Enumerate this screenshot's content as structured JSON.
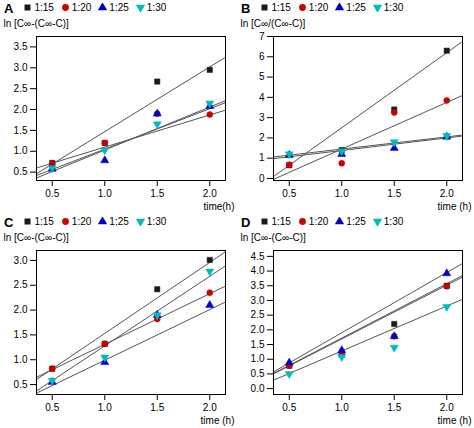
{
  "chart_data": [
    {
      "type": "scatter",
      "title": "A",
      "xlabel": "time(h)",
      "ylabel": "ln [C∞-(C∞-C)]",
      "xlim": [
        0.35,
        2.15
      ],
      "ylim": [
        0.3,
        3.75
      ],
      "xticks": [
        0.5,
        {
          "value": 1.0,
          "label": "1.0"
        },
        1.5,
        {
          "value": 2.0,
          "label": "2.0"
        }
      ],
      "yticks": [
        0.5,
        {
          "value": 1.0,
          "label": "1.0"
        },
        1.5,
        {
          "value": 2.0,
          "label": "2.0"
        },
        2.5,
        {
          "value": 3.0,
          "label": "3.0"
        },
        3.5
      ],
      "legend": "top",
      "series": [
        {
          "name": "1:15",
          "color": "#1a1a1a",
          "marker": "square",
          "x": [
            0.5,
            1.0,
            1.5,
            2.0
          ],
          "values": [
            0.72,
            1.2,
            2.67,
            2.95
          ],
          "fit": {
            "x": [
              0.35,
              2.15
            ],
            "values": [
              0.4625,
              3.2525
            ],
            "color": "#555555"
          }
        },
        {
          "name": "1:20",
          "color": "#cc0000",
          "marker": "circle",
          "x": [
            0.5,
            1.0,
            1.5,
            2.0
          ],
          "values": [
            0.7,
            1.2,
            1.9,
            1.88
          ],
          "fit": {
            "x": [
              0.35,
              2.15
            ],
            "values": [
              0.5995,
              1.9855
            ],
            "color": "#555555"
          }
        },
        {
          "name": "1:25",
          "color": "#0000cc",
          "marker": "triangle-up",
          "x": [
            0.5,
            1.0,
            1.5,
            2.0
          ],
          "values": [
            0.58,
            0.78,
            1.9,
            2.08
          ],
          "fit": {
            "x": [
              0.35,
              2.15
            ],
            "values": [
              0.3605,
              2.2145
            ],
            "color": "#555555"
          }
        },
        {
          "name": "1:30",
          "color": "#00bbbb",
          "marker": "triangle-down",
          "x": [
            0.5,
            1.0,
            1.5,
            2.0
          ],
          "values": [
            0.6,
            1.03,
            1.65,
            2.15
          ],
          "fit": {
            "x": [
              0.35,
              2.15
            ],
            "values": [
              0.4195,
              2.1655
            ],
            "color": "#555555"
          }
        }
      ]
    },
    {
      "type": "scatter",
      "title": "B",
      "xlabel": "time (h)",
      "ylabel": "ln [C∞/(C∞-C)]",
      "xlim": [
        0.35,
        2.15
      ],
      "ylim": [
        -0.1,
        7.0
      ],
      "xticks": [
        0.5,
        {
          "value": 1.0,
          "label": "1.0"
        },
        1.5,
        {
          "value": 2.0,
          "label": "2.0"
        }
      ],
      "yticks": [
        0,
        1,
        2,
        3,
        4,
        5,
        6,
        7
      ],
      "legend": "top",
      "series": [
        {
          "name": "1:15",
          "color": "#1a1a1a",
          "marker": "square",
          "x": [
            0.5,
            1.0,
            1.5,
            2.0
          ],
          "values": [
            0.65,
            1.4,
            3.4,
            6.3
          ],
          "fit": {
            "x": [
              0.35,
              2.15
            ],
            "values": [
              0.095,
              6.755
            ],
            "color": "#555555"
          }
        },
        {
          "name": "1:20",
          "color": "#cc0000",
          "marker": "circle",
          "x": [
            0.5,
            1.0,
            1.5,
            2.0
          ],
          "values": [
            0.68,
            0.75,
            3.25,
            3.85
          ],
          "fit": {
            "x": [
              0.35,
              2.15
            ],
            "values": [
              -0.045,
              4.095
            ],
            "color": "#555555"
          }
        },
        {
          "name": "1:25",
          "color": "#0000cc",
          "marker": "triangle-up",
          "x": [
            0.5,
            1.0,
            1.5,
            2.0
          ],
          "values": [
            1.15,
            1.2,
            1.5,
            2.05
          ],
          "fit": {
            "x": [
              0.35,
              2.15
            ],
            "values": [
              0.977,
              2.093
            ],
            "color": "#555555"
          }
        },
        {
          "name": "1:30",
          "color": "#00bbbb",
          "marker": "triangle-down",
          "x": [
            0.5,
            1.0,
            1.5,
            2.0
          ],
          "values": [
            1.2,
            1.35,
            1.8,
            2.1
          ],
          "fit": {
            "x": [
              0.35,
              2.15
            ],
            "values": [
              1.06,
              2.14
            ],
            "color": "#555555"
          }
        }
      ]
    },
    {
      "type": "scatter",
      "title": "C",
      "xlabel": "time (h)",
      "ylabel": "ln [C∞-(C∞-C)]",
      "xlim": [
        0.35,
        2.15
      ],
      "ylim": [
        0.3,
        3.2
      ],
      "xticks": [
        0.5,
        {
          "value": 1.0,
          "label": "1.0"
        },
        1.5,
        {
          "value": 2.0,
          "label": "2.0"
        }
      ],
      "yticks": [
        0.5,
        {
          "value": 1.0,
          "label": "1.0"
        },
        1.5,
        {
          "value": 2.0,
          "label": "2.0"
        },
        2.5,
        {
          "value": 3.0,
          "label": "3.0"
        }
      ],
      "legend": "top",
      "series": [
        {
          "name": "1:15",
          "color": "#1a1a1a",
          "marker": "square",
          "x": [
            0.5,
            1.0,
            1.5,
            2.0
          ],
          "values": [
            0.82,
            1.32,
            2.42,
            3.01
          ],
          "fit": {
            "x": [
              0.35,
              2.15
            ],
            "values": [
              0.6005,
              3.1745
            ],
            "color": "#555555"
          }
        },
        {
          "name": "1:20",
          "color": "#cc0000",
          "marker": "circle",
          "x": [
            0.5,
            1.0,
            1.5,
            2.0
          ],
          "values": [
            0.82,
            1.32,
            1.82,
            2.35
          ],
          "fit": {
            "x": [
              0.35,
              2.15
            ],
            "values": [
              0.647,
              2.483
            ],
            "color": "#555555"
          }
        },
        {
          "name": "1:25",
          "color": "#0000cc",
          "marker": "triangle-up",
          "x": [
            0.5,
            1.0,
            1.5,
            2.0
          ],
          "values": [
            0.55,
            0.95,
            1.9,
            2.1
          ],
          "fit": {
            "x": [
              0.35,
              2.15
            ],
            "values": [
              0.327,
              2.163
            ],
            "color": "#555555"
          }
        },
        {
          "name": "1:30",
          "color": "#00bbbb",
          "marker": "triangle-down",
          "x": [
            0.5,
            1.0,
            1.5,
            2.0
          ],
          "values": [
            0.58,
            1.05,
            1.9,
            2.78
          ],
          "fit": {
            "x": [
              0.35,
              2.15
            ],
            "values": [
              0.37,
              2.89
            ],
            "color": "#555555"
          }
        }
      ]
    },
    {
      "type": "scatter",
      "title": "D",
      "xlabel": "time (h)",
      "ylabel": "ln [C∞-(C∞-C)]",
      "xlim": [
        0.35,
        2.15
      ],
      "ylim": [
        -0.2,
        4.7
      ],
      "xticks": [
        0.5,
        {
          "value": 1.0,
          "label": "1.0"
        },
        1.5,
        {
          "value": 2.0,
          "label": "2.0"
        }
      ],
      "yticks": [
        {
          "value": 0.0,
          "label": "0.0"
        },
        0.5,
        {
          "value": 1.0,
          "label": "1.0"
        },
        1.5,
        {
          "value": 2.0,
          "label": "2.0"
        },
        2.5,
        {
          "value": 3.0,
          "label": "3.0"
        },
        3.5,
        {
          "value": 4.0,
          "label": "4.0"
        },
        4.5
      ],
      "legend": "top",
      "series": [
        {
          "name": "1:15",
          "color": "#1a1a1a",
          "marker": "square",
          "x": [
            0.5,
            1.0,
            1.5,
            2.0
          ],
          "values": [
            0.78,
            1.15,
            2.2,
            3.5
          ],
          "fit": {
            "x": [
              0.35,
              2.15
            ],
            "values": [
              0.5175,
              3.8475
            ],
            "color": "#555555"
          }
        },
        {
          "name": "1:20",
          "color": "#cc0000",
          "marker": "circle",
          "x": [
            0.5,
            1.0,
            1.5,
            2.0
          ],
          "values": [
            0.78,
            1.15,
            1.78,
            3.48
          ],
          "fit": {
            "x": [
              0.35,
              2.15
            ],
            "values": [
              0.5005,
              3.7945
            ],
            "color": "#555555"
          }
        },
        {
          "name": "1:25",
          "color": "#0000cc",
          "marker": "triangle-up",
          "x": [
            0.5,
            1.0,
            1.5,
            2.0
          ],
          "values": [
            0.88,
            1.3,
            1.78,
            3.92
          ],
          "fit": {
            "x": [
              0.35,
              2.15
            ],
            "values": [
              0.5675,
              4.2575
            ],
            "color": "#555555"
          }
        },
        {
          "name": "1:30",
          "color": "#00bbbb",
          "marker": "triangle-down",
          "x": [
            0.5,
            1.0,
            1.5,
            2.0
          ],
          "values": [
            0.5,
            1.08,
            1.4,
            2.78
          ],
          "fit": {
            "x": [
              0.35,
              2.15
            ],
            "values": [
              0.2855,
              3.0395
            ],
            "color": "#555555"
          }
        }
      ]
    }
  ]
}
